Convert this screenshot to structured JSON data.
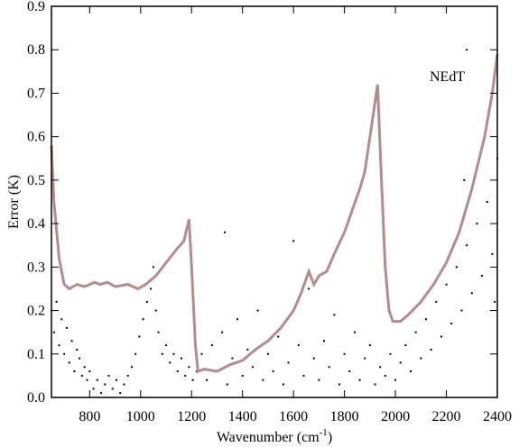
{
  "chart_data": {
    "type": "scatter",
    "xlabel": "Wavenumber (cm",
    "xlabel_sup": "-1",
    "xlabel_end": ")",
    "ylabel": "Error (K)",
    "xlim": [
      650,
      2400
    ],
    "xticks": [
      800,
      1000,
      1200,
      1400,
      1600,
      1800,
      2000,
      2200,
      2400
    ],
    "ylim": [
      0,
      0.9
    ],
    "yticks": [
      {
        "value": 0,
        "label": "0.0"
      },
      {
        "value": 0.1,
        "label": "0.1"
      },
      {
        "value": 0.2,
        "label": "0.2"
      },
      {
        "value": 0.3,
        "label": "0.3"
      },
      {
        "value": 0.4,
        "label": "0.4"
      },
      {
        "value": 0.5,
        "label": "0.5"
      },
      {
        "value": 0.6,
        "label": "0.6"
      },
      {
        "value": 0.7,
        "label": "0.7"
      },
      {
        "value": 0.8,
        "label": "0.8"
      },
      {
        "value": 0.9,
        "label": "0.9"
      }
    ],
    "series": [
      {
        "type": "scatter",
        "color": "#000000",
        "x": [
          650,
          660,
          670,
          680,
          690,
          700,
          710,
          720,
          730,
          740,
          750,
          760,
          770,
          780,
          790,
          800,
          815,
          830,
          845,
          860,
          875,
          890,
          905,
          920,
          935,
          950,
          965,
          980,
          995,
          1010,
          1025,
          1040,
          1050,
          1060,
          1070,
          1085,
          1100,
          1115,
          1130,
          1145,
          1160,
          1175,
          1190,
          1205,
          1220,
          1240,
          1260,
          1280,
          1300,
          1320,
          1340,
          1360,
          1380,
          1400,
          1420,
          1440,
          1460,
          1480,
          1500,
          1520,
          1540,
          1560,
          1580,
          1600,
          1620,
          1640,
          1660,
          1680,
          1700,
          1720,
          1740,
          1760,
          1780,
          1800,
          1820,
          1840,
          1860,
          1880,
          1900,
          1920,
          1940,
          1960,
          1980,
          2000,
          2020,
          2040,
          2060,
          2080,
          2100,
          2120,
          2140,
          2160,
          2180,
          2200,
          2220,
          2240,
          2260,
          2270,
          2280,
          2300,
          2320,
          2340,
          2360,
          2380,
          2390,
          2400,
          1330,
          2280
        ],
        "values": [
          0.2,
          0.15,
          0.22,
          0.12,
          0.18,
          0.1,
          0.16,
          0.08,
          0.13,
          0.06,
          0.11,
          0.09,
          0.05,
          0.07,
          0.04,
          0.06,
          0.02,
          0.04,
          0.01,
          0.03,
          0.05,
          0.02,
          0.04,
          0.01,
          0.03,
          0.05,
          0.07,
          0.1,
          0.14,
          0.18,
          0.22,
          0.25,
          0.3,
          0.2,
          0.15,
          0.1,
          0.12,
          0.08,
          0.1,
          0.06,
          0.09,
          0.05,
          0.07,
          0.04,
          0.06,
          0.1,
          0.04,
          0.12,
          0.06,
          0.15,
          0.03,
          0.09,
          0.18,
          0.05,
          0.11,
          0.07,
          0.2,
          0.04,
          0.1,
          0.06,
          0.14,
          0.03,
          0.08,
          0.36,
          0.12,
          0.05,
          0.25,
          0.09,
          0.04,
          0.13,
          0.07,
          0.19,
          0.03,
          0.1,
          0.06,
          0.15,
          0.04,
          0.09,
          0.12,
          0.03,
          0.07,
          0.05,
          0.1,
          0.04,
          0.08,
          0.12,
          0.06,
          0.15,
          0.09,
          0.18,
          0.11,
          0.22,
          0.14,
          0.26,
          0.17,
          0.3,
          0.2,
          0.5,
          0.35,
          0.24,
          0.4,
          0.28,
          0.45,
          0.33,
          0.22,
          0.55,
          0.38,
          0.8
        ]
      },
      {
        "type": "line",
        "name": "NEdT",
        "color": "#b58c8c",
        "x": [
          650,
          660,
          680,
          700,
          720,
          750,
          780,
          820,
          840,
          870,
          900,
          950,
          990,
          1020,
          1060,
          1100,
          1140,
          1170,
          1190,
          1200,
          1215,
          1225,
          1250,
          1300,
          1350,
          1400,
          1450,
          1500,
          1550,
          1600,
          1630,
          1660,
          1680,
          1700,
          1730,
          1760,
          1800,
          1830,
          1860,
          1880,
          1900,
          1930,
          1945,
          1960,
          1975,
          1990,
          2020,
          2050,
          2100,
          2150,
          2200,
          2250,
          2300,
          2350,
          2380,
          2400
        ],
        "values": [
          0.58,
          0.45,
          0.32,
          0.26,
          0.25,
          0.26,
          0.255,
          0.265,
          0.26,
          0.265,
          0.255,
          0.26,
          0.25,
          0.26,
          0.28,
          0.31,
          0.34,
          0.36,
          0.41,
          0.3,
          0.12,
          0.06,
          0.065,
          0.06,
          0.075,
          0.085,
          0.11,
          0.13,
          0.16,
          0.2,
          0.24,
          0.29,
          0.26,
          0.28,
          0.29,
          0.33,
          0.38,
          0.43,
          0.48,
          0.52,
          0.6,
          0.72,
          0.5,
          0.3,
          0.2,
          0.175,
          0.175,
          0.19,
          0.22,
          0.26,
          0.31,
          0.38,
          0.48,
          0.6,
          0.7,
          0.79
        ]
      }
    ]
  }
}
